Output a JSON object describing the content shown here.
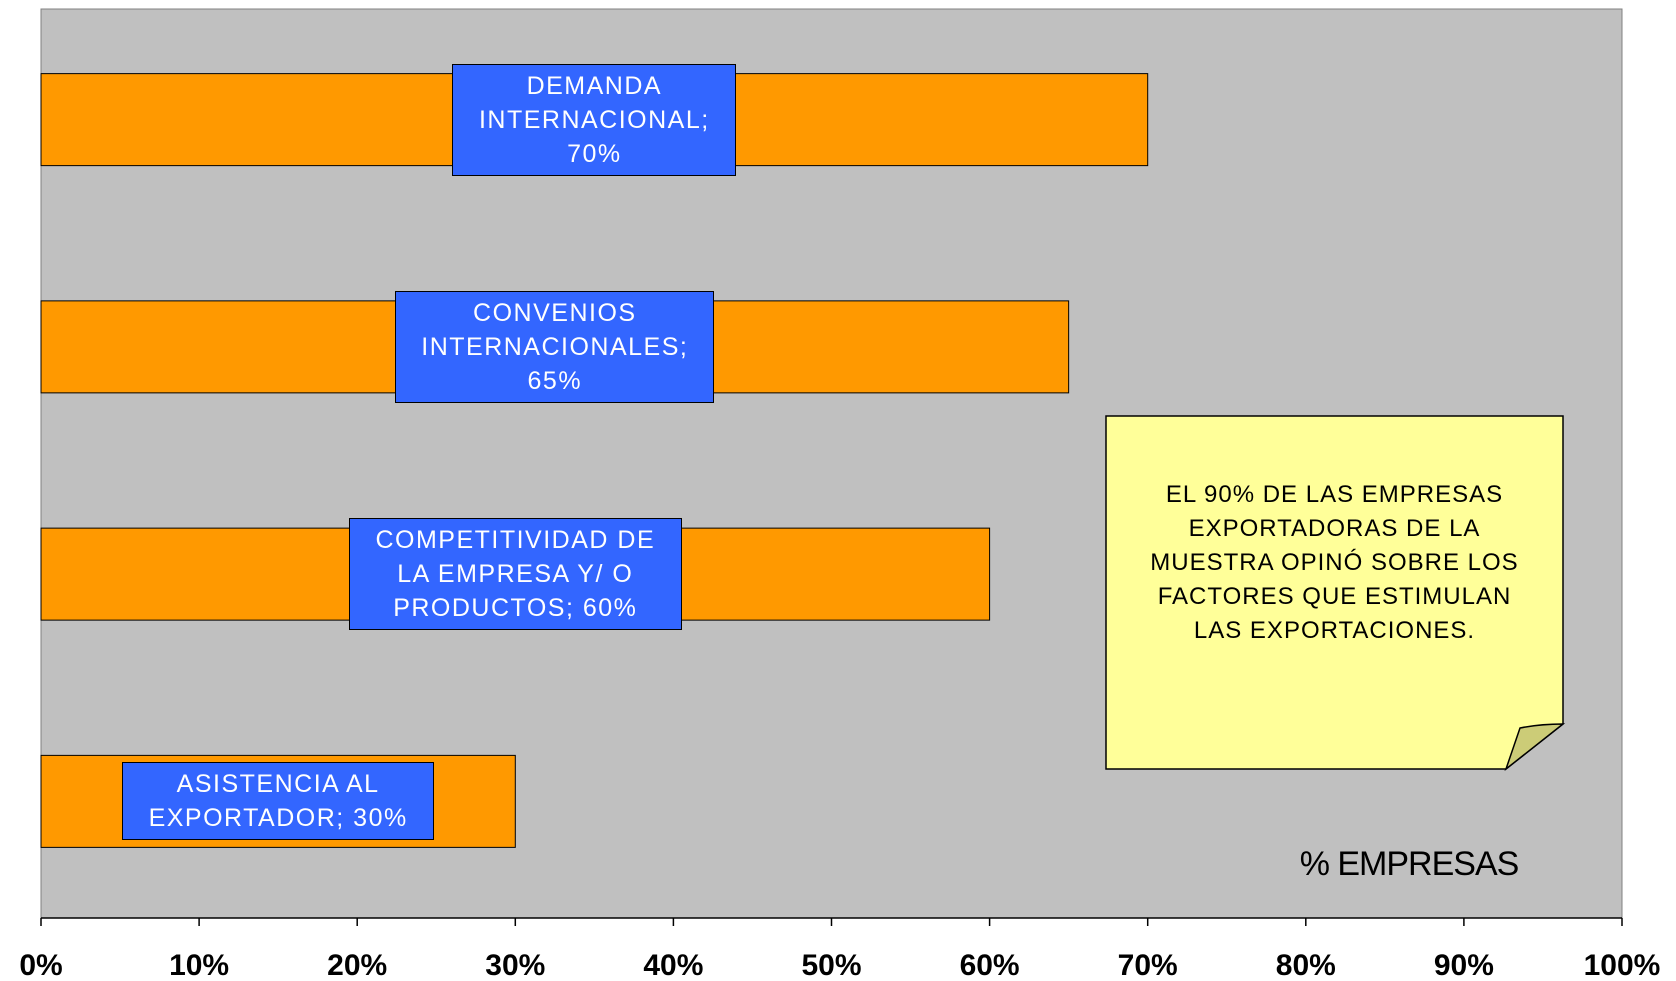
{
  "chart_data": {
    "type": "barh",
    "values": [
      70,
      65,
      60,
      30
    ],
    "value_labels": [
      "DEMANDA INTERNACIONAL; 70%",
      "CONVENIOS INTERNACIONALES; 65%",
      "COMPETITIVIDAD DE LA EMPRESA Y/ O PRODUCTOS; 60%",
      "ASISTENCIA AL EXPORTADOR; 30%"
    ],
    "color": "#ff9900",
    "label_color": "#3366ff",
    "background": "#c0c0c0",
    "xlabel": "% EMPRESAS",
    "annotation": "EL 90% DE LAS EMPRESAS EXPORTADORAS DE LA MUESTRA OPINÓ SOBRE LOS FACTORES QUE ESTIMULAN LAS EXPORTACIONES.",
    "xlim": [
      0,
      100
    ],
    "xticks": [
      {
        "value": 0,
        "label": "0%"
      },
      {
        "value": 10,
        "label": "10%"
      },
      {
        "value": 20,
        "label": "20%"
      },
      {
        "value": 30,
        "label": "30%"
      },
      {
        "value": 40,
        "label": "40%"
      },
      {
        "value": 50,
        "label": "50%"
      },
      {
        "value": 60,
        "label": "60%"
      },
      {
        "value": 70,
        "label": "70%"
      },
      {
        "value": 80,
        "label": "80%"
      },
      {
        "value": 90,
        "label": "90%"
      },
      {
        "value": 100,
        "label": "100%"
      }
    ]
  }
}
